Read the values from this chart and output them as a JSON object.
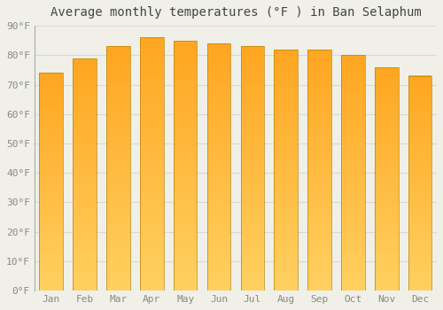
{
  "title": "Average monthly temperatures (°F ) in Ban Selaphum",
  "months": [
    "Jan",
    "Feb",
    "Mar",
    "Apr",
    "May",
    "Jun",
    "Jul",
    "Aug",
    "Sep",
    "Oct",
    "Nov",
    "Dec"
  ],
  "values": [
    74,
    79,
    83,
    86,
    85,
    84,
    83,
    82,
    82,
    80,
    76,
    73
  ],
  "bar_color_bottom": "#FFD060",
  "bar_color_top": "#FFA520",
  "bar_edge_color": "#B8860B",
  "background_color": "#f0f0e8",
  "grid_color": "#d8d8d8",
  "ylim": [
    0,
    90
  ],
  "yticks": [
    0,
    10,
    20,
    30,
    40,
    50,
    60,
    70,
    80,
    90
  ],
  "ytick_labels": [
    "0°F",
    "10°F",
    "20°F",
    "30°F",
    "40°F",
    "50°F",
    "60°F",
    "70°F",
    "80°F",
    "90°F"
  ],
  "title_fontsize": 10,
  "tick_fontsize": 8,
  "bar_width": 0.7,
  "figsize": [
    5.0,
    3.5
  ],
  "dpi": 100
}
